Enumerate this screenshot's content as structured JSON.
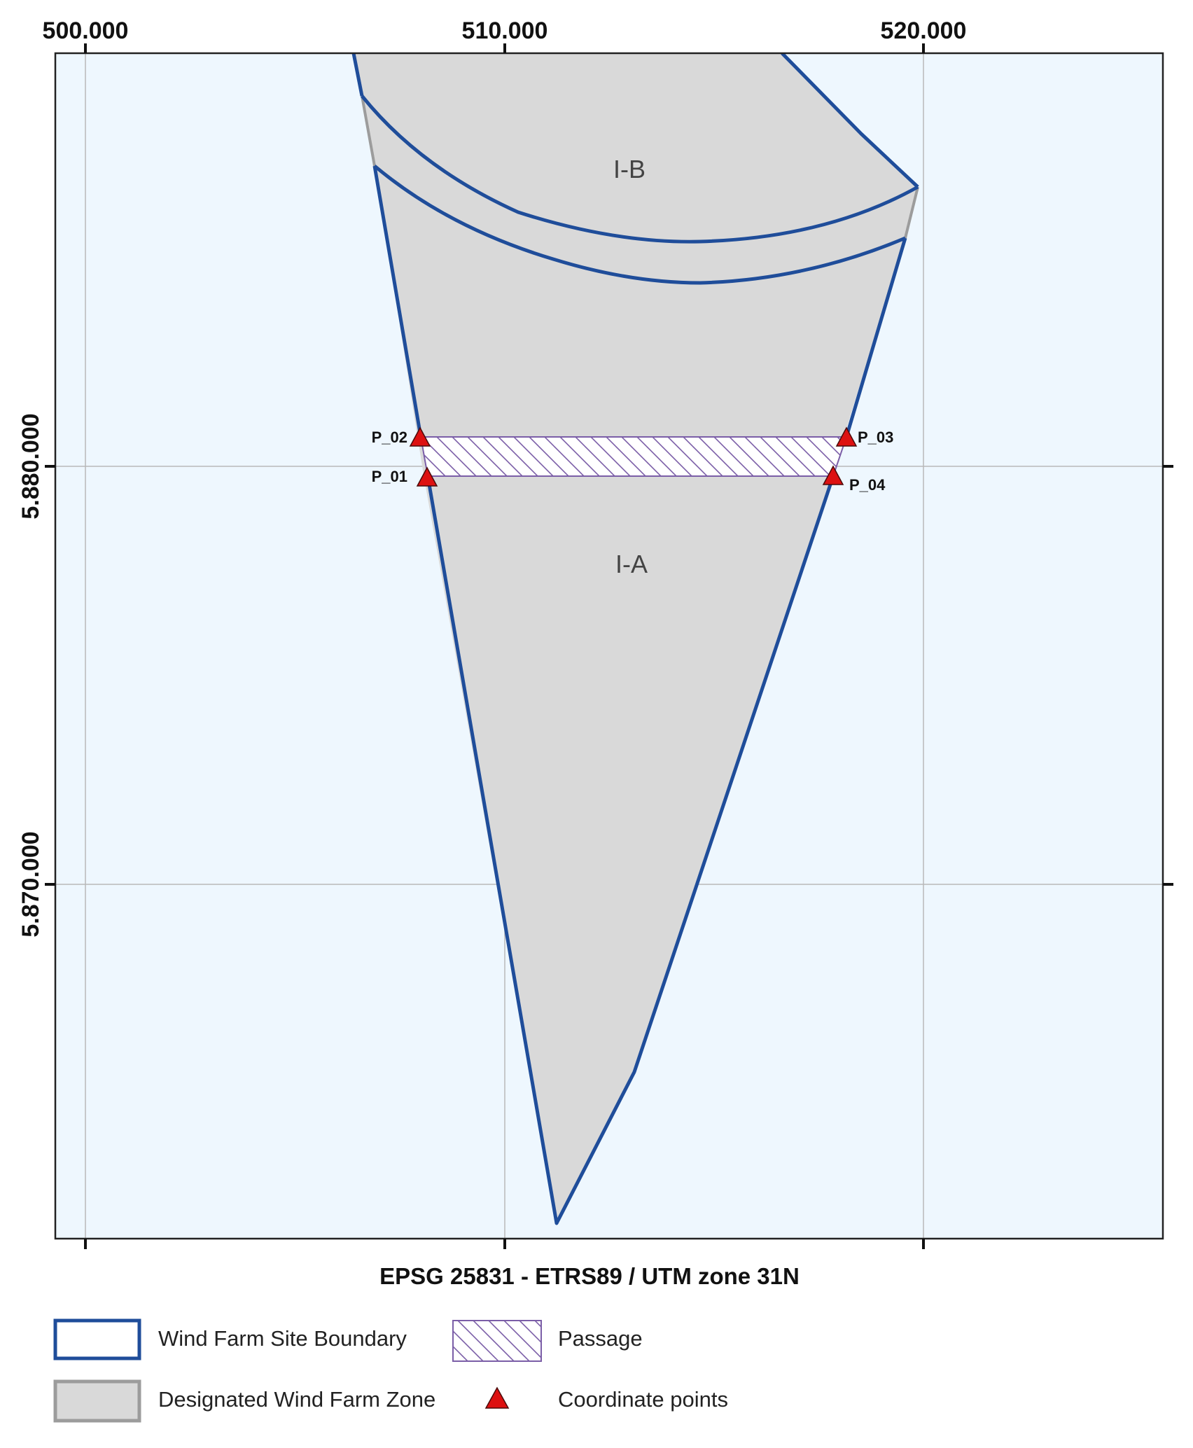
{
  "map": {
    "crs_label": "EPSG 25831 - ETRS89 / UTM zone 31N",
    "x_ticks": [
      {
        "value": 500000,
        "label": "500.000"
      },
      {
        "value": 510000,
        "label": "510.000"
      },
      {
        "value": 520000,
        "label": "520.000"
      }
    ],
    "y_ticks": [
      {
        "value": 5880000,
        "label": "5.880.000"
      },
      {
        "value": 5870000,
        "label": "5.870.000"
      }
    ],
    "zones": [
      {
        "label": "I-B"
      },
      {
        "label": "I-A"
      }
    ],
    "points": [
      {
        "id": "P_01",
        "label": "P_01"
      },
      {
        "id": "P_02",
        "label": "P_02"
      },
      {
        "id": "P_03",
        "label": "P_03"
      },
      {
        "id": "P_04",
        "label": "P_04"
      }
    ],
    "colors": {
      "sea": "#eef7fe",
      "zone_fill": "#d9d9d9",
      "boundary": "#1f4d9a",
      "passage": "#7b5ea7",
      "point": "#dd1111",
      "grid": "#b8b8b8",
      "zone_edge": "#9c9c9c"
    }
  },
  "legend": {
    "items": [
      {
        "label": "Wind Farm Site Boundary",
        "symbol": "boundary-box"
      },
      {
        "label": "Passage",
        "symbol": "hatch-box"
      },
      {
        "label": "Designated Wind Farm Zone",
        "symbol": "zone-box"
      },
      {
        "label": "Coordinate points",
        "symbol": "red-triangle"
      }
    ]
  }
}
